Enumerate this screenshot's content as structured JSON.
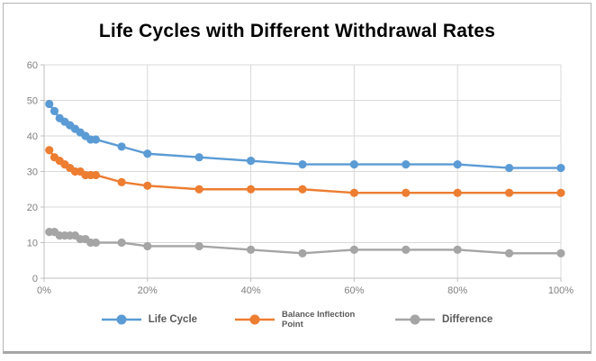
{
  "frame": {
    "background": "#ffffff",
    "border_color": "#b3b3b3"
  },
  "chart_data": {
    "type": "line",
    "title": "Life Cycles with Different Withdrawal Rates",
    "title_color": "#000000",
    "x_unit": "percent",
    "x": [
      1,
      2,
      3,
      4,
      5,
      6,
      7,
      8,
      9,
      10,
      15,
      20,
      30,
      40,
      50,
      60,
      70,
      80,
      90,
      100
    ],
    "series": [
      {
        "name": "Life Cycle",
        "color": "#5B9BD5",
        "values": [
          49,
          47,
          45,
          44,
          43,
          42,
          41,
          40,
          39,
          39,
          37,
          35,
          34,
          33,
          32,
          32,
          32,
          32,
          31,
          31
        ]
      },
      {
        "name": "Balance Inflection Point",
        "color": "#ED7D31",
        "values": [
          36,
          34,
          33,
          32,
          31,
          30,
          30,
          29,
          29,
          29,
          27,
          26,
          25,
          25,
          25,
          24,
          24,
          24,
          24,
          24
        ]
      },
      {
        "name": "Difference",
        "color": "#A5A5A5",
        "values": [
          13,
          13,
          12,
          12,
          12,
          12,
          11,
          11,
          10,
          10,
          10,
          9,
          9,
          8,
          7,
          8,
          8,
          8,
          7,
          7
        ]
      }
    ],
    "xlabel": "",
    "ylabel": "",
    "ylim": [
      0,
      60
    ],
    "xlim": [
      0,
      100
    ],
    "y_ticks": [
      0,
      10,
      20,
      30,
      40,
      50,
      60
    ],
    "x_ticks": [
      0,
      20,
      40,
      60,
      80,
      100
    ],
    "x_tick_labels": [
      "0%",
      "20%",
      "40%",
      "60%",
      "80%",
      "100%"
    ],
    "grid": true,
    "gridline_color": "#d9d9d9",
    "axis_line_color": "#bfbfbf",
    "tick_label_color": "#808080",
    "legend_position": "bottom",
    "legend_text_color": "#595959",
    "marker": "circle",
    "marker_radius": 4.6,
    "line_width": 2.4
  }
}
